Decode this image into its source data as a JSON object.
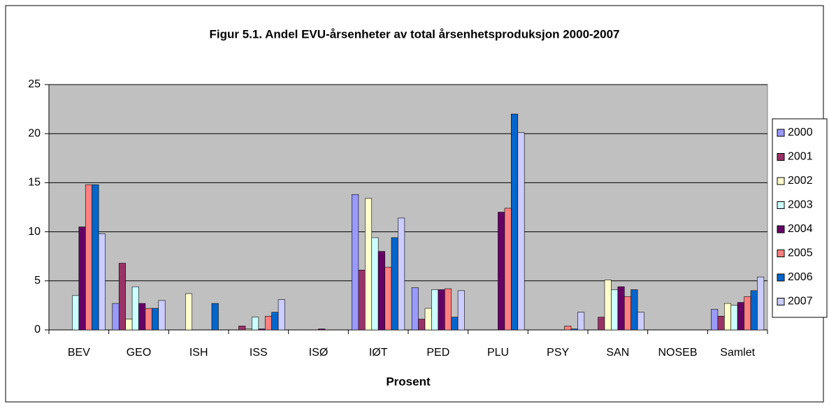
{
  "chart_data": {
    "type": "bar",
    "title": "Figur 5.1. Andel EVU-årsenheter av total årsenhetsproduksjon 2000-2007",
    "x_label": "Prosent",
    "categories": [
      "BEV",
      "GEO",
      "ISH",
      "ISS",
      "ISØ",
      "IØT",
      "PED",
      "PLU",
      "PSY",
      "SAN",
      "NOSEB",
      "Samlet"
    ],
    "series": [
      {
        "name": "2000",
        "color": "#9999ff",
        "values": [
          0,
          2.7,
          0,
          0,
          0,
          13.8,
          4.3,
          0,
          0,
          0,
          0,
          2.1
        ]
      },
      {
        "name": "2001",
        "color": "#993366",
        "values": [
          0,
          6.8,
          0,
          0.4,
          0,
          6.1,
          1.1,
          0,
          0,
          1.3,
          0,
          1.4
        ]
      },
      {
        "name": "2002",
        "color": "#ffffcc",
        "values": [
          0,
          1.1,
          3.7,
          0.1,
          0,
          13.4,
          2.2,
          0,
          0,
          5.1,
          0,
          2.7
        ]
      },
      {
        "name": "2003",
        "color": "#ccffff",
        "values": [
          3.5,
          4.4,
          0,
          1.3,
          0,
          9.4,
          4.1,
          0,
          0,
          4.1,
          0,
          2.5
        ]
      },
      {
        "name": "2004",
        "color": "#660066",
        "values": [
          10.5,
          2.7,
          0,
          0.1,
          0.1,
          8.0,
          4.1,
          12.0,
          0,
          4.4,
          0,
          2.8
        ]
      },
      {
        "name": "2005",
        "color": "#ff8080",
        "values": [
          14.8,
          2.2,
          0,
          1.4,
          0,
          6.4,
          4.2,
          12.4,
          0.4,
          3.4,
          0,
          3.4
        ]
      },
      {
        "name": "2006",
        "color": "#0066cc",
        "values": [
          14.8,
          2.2,
          2.7,
          1.8,
          0,
          9.4,
          1.3,
          22.0,
          0.1,
          4.1,
          0,
          4.0
        ]
      },
      {
        "name": "2007",
        "color": "#ccccff",
        "values": [
          9.8,
          3.0,
          0,
          3.1,
          0,
          11.4,
          4.0,
          20.1,
          1.8,
          1.8,
          0,
          5.4
        ]
      }
    ],
    "ylim": [
      0,
      25
    ],
    "yticks": [
      0,
      5,
      10,
      15,
      20,
      25
    ],
    "grid": true,
    "legend": "right"
  }
}
